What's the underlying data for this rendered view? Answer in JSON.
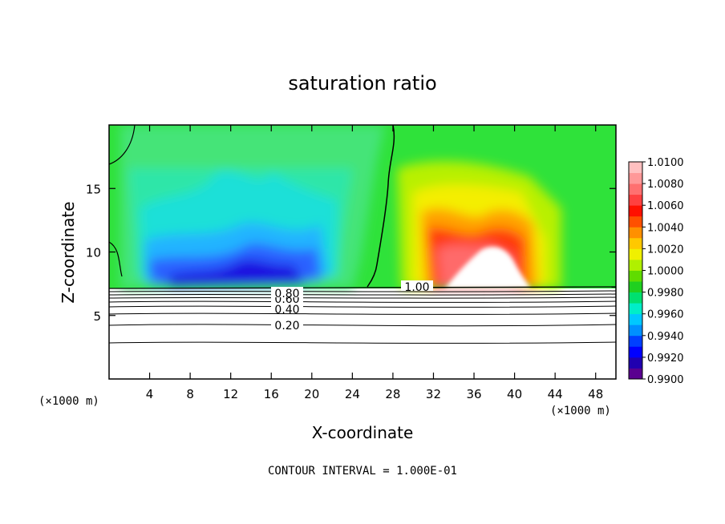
{
  "chart_data": {
    "type": "heatmap",
    "title": "saturation ratio",
    "xlabel": "X-coordinate",
    "ylabel": "Z-coordinate",
    "x_unit_left": "(×1000 m)",
    "x_unit_right": "(×1000 m)",
    "xlim": [
      0,
      50
    ],
    "ylim": [
      0,
      20
    ],
    "x_ticks": [
      4,
      8,
      12,
      16,
      20,
      24,
      28,
      32,
      36,
      40,
      44,
      48
    ],
    "y_ticks": [
      5,
      10,
      15
    ],
    "colorbar": {
      "ticks": [
        "0.9900",
        "0.9920",
        "0.9940",
        "0.9960",
        "0.9980",
        "1.0000",
        "1.0020",
        "1.0040",
        "1.0060",
        "1.0080",
        "1.0100"
      ],
      "colors": [
        "#5a0090",
        "#2000b0",
        "#0000ff",
        "#0040ff",
        "#0090ff",
        "#00c8ff",
        "#00eec8",
        "#00e070",
        "#20d020",
        "#60dc00",
        "#b0f000",
        "#f0f000",
        "#ffc800",
        "#ff9000",
        "#ff5000",
        "#ff1000",
        "#ff4040",
        "#ff7070",
        "#ff9898",
        "#ffc0c0"
      ]
    },
    "contour_levels": [
      {
        "label": "0.20",
        "z": 4.2
      },
      {
        "label": "0.40",
        "z": 5.6
      },
      {
        "label": "0.60",
        "z": 6.4
      },
      {
        "label": "0.80",
        "z": 6.8
      },
      {
        "label": "1.00",
        "z": 7.3
      }
    ],
    "caption": "CONTOUR INTERVAL = 1.000E-01"
  }
}
